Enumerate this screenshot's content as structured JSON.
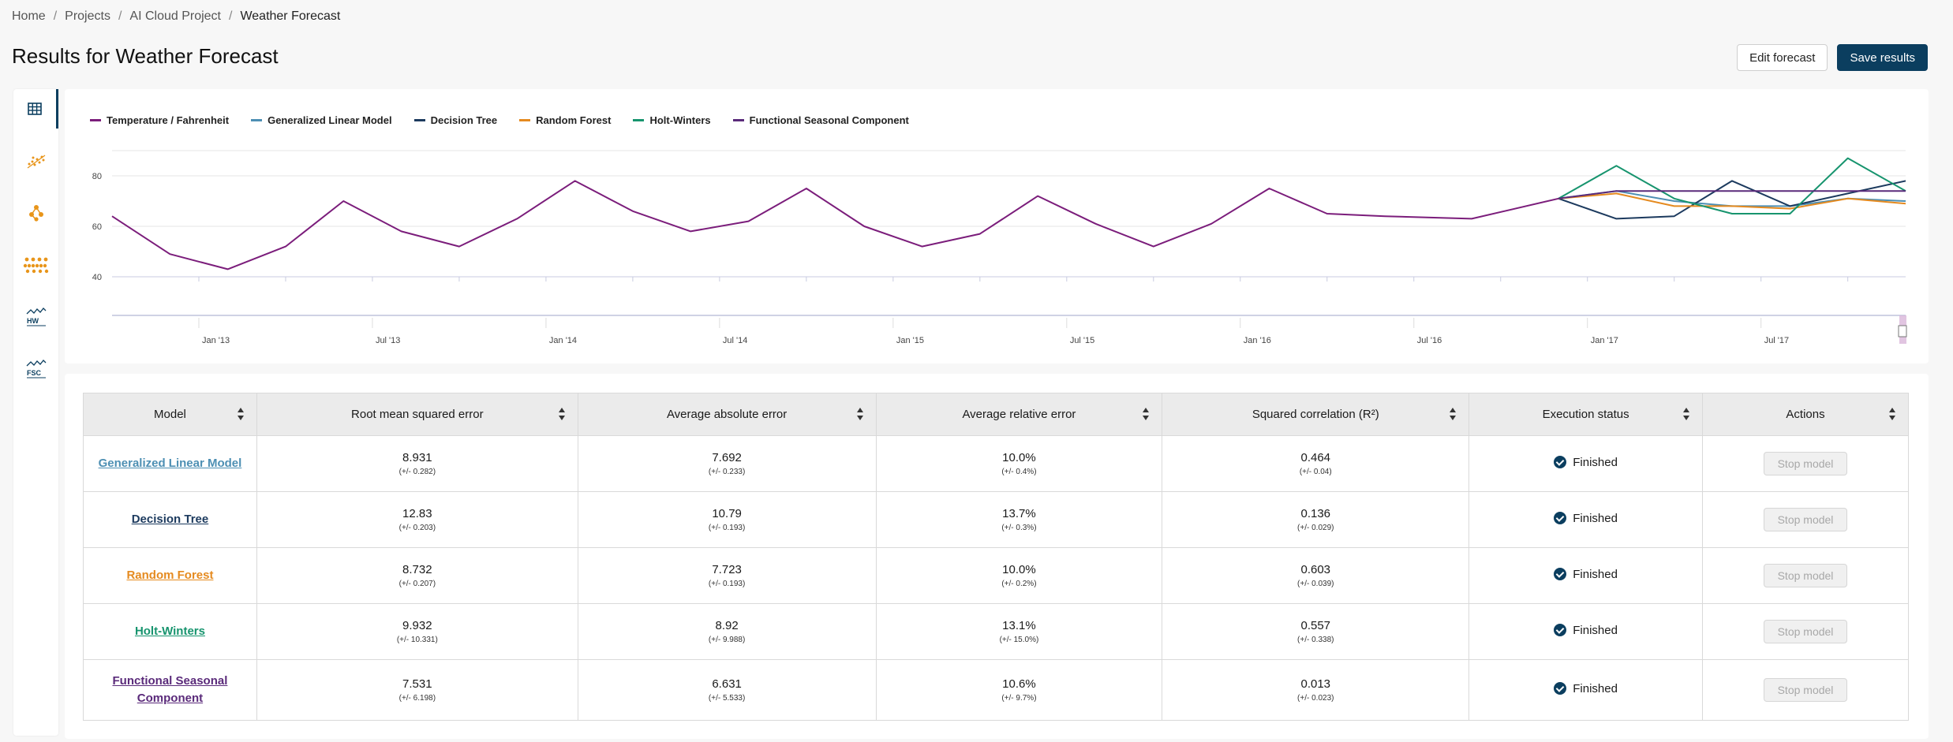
{
  "breadcrumb": {
    "items": [
      "Home",
      "Projects",
      "AI Cloud Project"
    ],
    "current": "Weather Forecast",
    "separator": "/"
  },
  "page": {
    "title": "Results for Weather Forecast"
  },
  "header_actions": {
    "edit_label": "Edit forecast",
    "save_label": "Save results"
  },
  "sidebar": {
    "items": [
      {
        "icon": "table-icon",
        "active": true
      },
      {
        "icon": "scatter-icon",
        "active": false
      },
      {
        "icon": "decision-tree-icon",
        "active": false
      },
      {
        "icon": "random-forest-icon",
        "active": false
      },
      {
        "icon": "holt-winters-icon",
        "active": false
      },
      {
        "icon": "fsc-icon",
        "active": false
      }
    ],
    "icon_labels": {
      "hw": "HW",
      "fsc": "FSC"
    }
  },
  "colors": {
    "primary": "#0b3e5f",
    "temperature": "#7b1d7b",
    "glm": "#4d8fb3",
    "dt": "#1c3a5e",
    "rf": "#e58a1f",
    "hw": "#17946e",
    "fsc": "#5a2a7a",
    "sidebar_orange": "#e8951a"
  },
  "chart_data": {
    "type": "line",
    "title": "",
    "xlabel": "",
    "ylabel": "",
    "ylim": [
      35,
      95
    ],
    "yticks": [
      40,
      60,
      80
    ],
    "x_tick_labels": [
      "Jan '13",
      "Jul '13",
      "Jan '14",
      "Jul '14",
      "Jan '15",
      "Jul '15",
      "Jan '16",
      "Jul '16",
      "Jan '17",
      "Jul '17"
    ],
    "x_tick_dates": [
      "2013-01",
      "2013-07",
      "2014-01",
      "2014-07",
      "2015-01",
      "2015-07",
      "2016-01",
      "2016-07",
      "2017-01",
      "2017-07"
    ],
    "grid": true,
    "legend": "top-left",
    "series": [
      {
        "name": "Temperature / Fahrenheit",
        "color": "#7b1d7b",
        "x": [
          "2012-10",
          "2012-12",
          "2013-02",
          "2013-04",
          "2013-06",
          "2013-08",
          "2013-10",
          "2013-12",
          "2014-02",
          "2014-04",
          "2014-06",
          "2014-08",
          "2014-10",
          "2014-12",
          "2015-02",
          "2015-04",
          "2015-06",
          "2015-08",
          "2015-10",
          "2015-12",
          "2016-02",
          "2016-04",
          "2016-06",
          "2016-09",
          "2016-12"
        ],
        "values": [
          64,
          49,
          43,
          52,
          70,
          58,
          52,
          63,
          78,
          66,
          58,
          62,
          75,
          60,
          52,
          57,
          72,
          61,
          52,
          61,
          75,
          65,
          64,
          63,
          71
        ]
      },
      {
        "name": "Generalized Linear Model",
        "color": "#4d8fb3",
        "x": [
          "2016-12",
          "2017-02",
          "2017-04",
          "2017-06",
          "2017-08",
          "2017-10",
          "2017-12"
        ],
        "values": [
          71,
          74,
          70,
          68,
          68,
          71,
          70
        ]
      },
      {
        "name": "Decision Tree",
        "color": "#1c3a5e",
        "x": [
          "2016-12",
          "2017-02",
          "2017-04",
          "2017-06",
          "2017-08",
          "2017-10",
          "2017-12"
        ],
        "values": [
          71,
          63,
          64,
          78,
          68,
          73,
          78
        ]
      },
      {
        "name": "Random Forest",
        "color": "#e58a1f",
        "x": [
          "2016-12",
          "2017-02",
          "2017-04",
          "2017-06",
          "2017-08",
          "2017-10",
          "2017-12"
        ],
        "values": [
          71,
          73,
          68,
          68,
          67,
          71,
          69
        ]
      },
      {
        "name": "Holt-Winters",
        "color": "#17946e",
        "x": [
          "2016-12",
          "2017-02",
          "2017-04",
          "2017-06",
          "2017-08",
          "2017-10",
          "2017-12"
        ],
        "values": [
          71,
          84,
          71,
          65,
          65,
          87,
          74
        ]
      },
      {
        "name": "Functional Seasonal Component",
        "color": "#5a2a7a",
        "x": [
          "2016-12",
          "2017-02",
          "2017-04",
          "2017-06",
          "2017-08",
          "2017-10",
          "2017-12"
        ],
        "values": [
          71,
          74,
          74,
          74,
          74,
          74,
          74
        ]
      }
    ]
  },
  "table": {
    "headers": [
      "Model",
      "Root mean squared error",
      "Average absolute error",
      "Average relative error",
      "Squared correlation (R²)",
      "Execution status",
      "Actions"
    ],
    "rows": [
      {
        "model": "Generalized Linear Model",
        "color": "#4d8fb3",
        "rmse": "8.931",
        "rmse_err": "(+/- 0.282)",
        "mae": "7.692",
        "mae_err": "(+/- 0.233)",
        "mre": "10.0%",
        "mre_err": "(+/- 0.4%)",
        "r2": "0.464",
        "r2_err": "(+/- 0.04)",
        "status": "Finished",
        "action": "Stop model"
      },
      {
        "model": "Decision Tree",
        "color": "#1c3a5e",
        "rmse": "12.83",
        "rmse_err": "(+/- 0.203)",
        "mae": "10.79",
        "mae_err": "(+/- 0.193)",
        "mre": "13.7%",
        "mre_err": "(+/- 0.3%)",
        "r2": "0.136",
        "r2_err": "(+/- 0.029)",
        "status": "Finished",
        "action": "Stop model"
      },
      {
        "model": "Random Forest",
        "color": "#e58a1f",
        "rmse": "8.732",
        "rmse_err": "(+/- 0.207)",
        "mae": "7.723",
        "mae_err": "(+/- 0.193)",
        "mre": "10.0%",
        "mre_err": "(+/- 0.2%)",
        "r2": "0.603",
        "r2_err": "(+/- 0.039)",
        "status": "Finished",
        "action": "Stop model"
      },
      {
        "model": "Holt-Winters",
        "color": "#17946e",
        "rmse": "9.932",
        "rmse_err": "(+/- 10.331)",
        "mae": "8.92",
        "mae_err": "(+/- 9.988)",
        "mre": "13.1%",
        "mre_err": "(+/- 15.0%)",
        "r2": "0.557",
        "r2_err": "(+/- 0.338)",
        "status": "Finished",
        "action": "Stop model"
      },
      {
        "model": "Functional Seasonal Component",
        "color": "#5a2a7a",
        "rmse": "7.531",
        "rmse_err": "(+/- 6.198)",
        "mae": "6.631",
        "mae_err": "(+/- 5.533)",
        "mre": "10.6%",
        "mre_err": "(+/- 9.7%)",
        "r2": "0.013",
        "r2_err": "(+/- 0.023)",
        "status": "Finished",
        "action": "Stop model"
      }
    ]
  }
}
